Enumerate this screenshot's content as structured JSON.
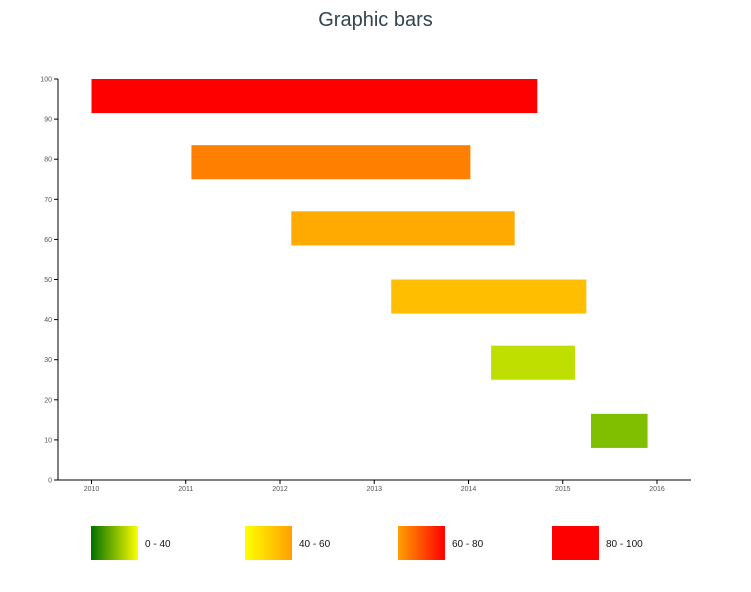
{
  "chart_data": {
    "type": "bar",
    "orientation": "horizontal-range",
    "title": "Graphic bars",
    "xlabel": "",
    "ylabel": "",
    "xlim": [
      2010,
      2016.37
    ],
    "ylim": [
      0,
      100
    ],
    "x_ticks": [
      "2010",
      "2011",
      "2012",
      "2013",
      "2014",
      "2015",
      "2016"
    ],
    "y_ticks": [
      "0",
      "10",
      "20",
      "30",
      "40",
      "50",
      "60",
      "70",
      "80",
      "90",
      "100"
    ],
    "bars": [
      {
        "x_start": 2010.0,
        "x_end": 2014.73,
        "y_low": 91.5,
        "y_high": 100,
        "value": 100,
        "color": "#ff0000"
      },
      {
        "x_start": 2011.06,
        "x_end": 2014.02,
        "y_low": 75,
        "y_high": 83.5,
        "value": 75,
        "color": "#ff8000"
      },
      {
        "x_start": 2012.12,
        "x_end": 2014.49,
        "y_low": 58.5,
        "y_high": 67,
        "value": 62,
        "color": "#ffaa00"
      },
      {
        "x_start": 2013.18,
        "x_end": 2015.25,
        "y_low": 41.5,
        "y_high": 50,
        "value": 50,
        "color": "#ffbf00"
      },
      {
        "x_start": 2014.24,
        "x_end": 2015.13,
        "y_low": 25,
        "y_high": 33.5,
        "value": 35,
        "color": "#bfdf00"
      },
      {
        "x_start": 2015.3,
        "x_end": 2015.9,
        "y_low": 8,
        "y_high": 16.5,
        "value": 20,
        "color": "#7fbf00"
      }
    ],
    "legend": {
      "placement": "bottom",
      "items": [
        {
          "label": "0 - 40",
          "colors": [
            "#007000",
            "#ffff00"
          ]
        },
        {
          "label": "40 - 60",
          "colors": [
            "#ffff00",
            "#ffa000"
          ]
        },
        {
          "label": "60 - 80",
          "colors": [
            "#ffa000",
            "#ff0000"
          ]
        },
        {
          "label": "80 - 100",
          "colors": [
            "#ff0000",
            "#ff0000"
          ]
        }
      ]
    }
  }
}
